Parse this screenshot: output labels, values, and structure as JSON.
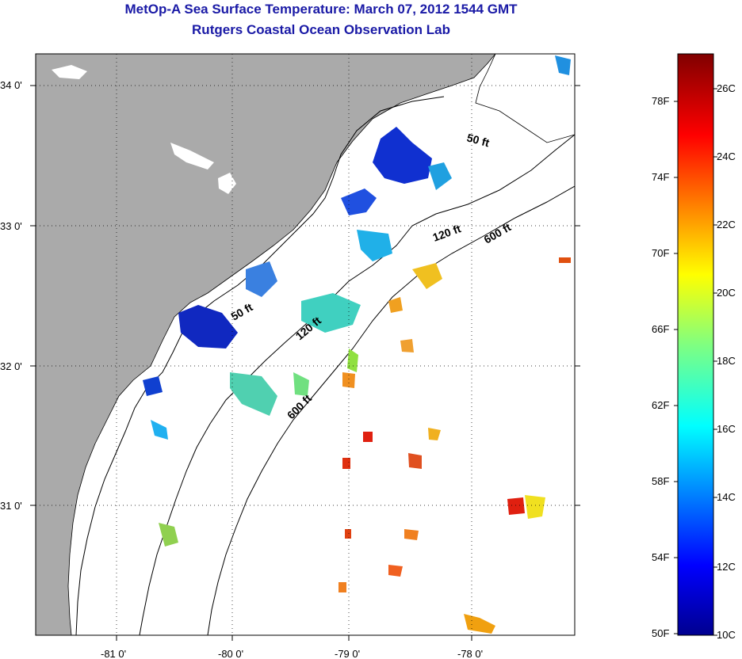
{
  "title": "MetOp-A Sea Surface Temperature:  March 07, 2012 1544 GMT",
  "subtitle": "Rutgers Coastal Ocean Observation Lab",
  "axes": {
    "lon_ticks": [
      "-81 0'",
      "-80 0'",
      "-79 0'",
      "-78 0'"
    ],
    "lat_ticks": [
      "34 0'",
      "33 0'",
      "32 0'",
      "31 0'"
    ]
  },
  "contours": {
    "labels": [
      "50 ft",
      "120 ft",
      "600 ft",
      "50 ft",
      "120 ft",
      "600 ft"
    ]
  },
  "colorbar": {
    "fahrenheit": [
      "78F",
      "74F",
      "70F",
      "66F",
      "62F",
      "58F",
      "54F",
      "50F"
    ],
    "celsius": [
      "26C",
      "24C",
      "22C",
      "20C",
      "18C",
      "16C",
      "14C",
      "12C",
      "10C"
    ]
  },
  "colors": {
    "land": "#aaaaaa",
    "cold": "#1020c0",
    "warm": "#e02010"
  }
}
